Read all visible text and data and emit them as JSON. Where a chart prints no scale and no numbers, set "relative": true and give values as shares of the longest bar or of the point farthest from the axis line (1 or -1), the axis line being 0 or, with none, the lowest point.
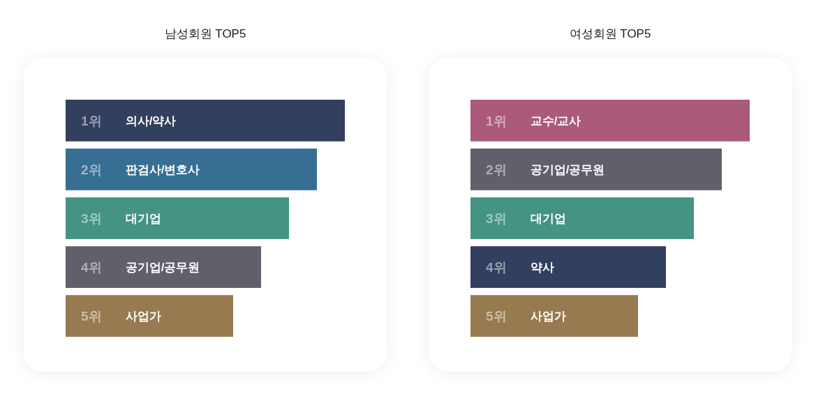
{
  "chart_data": [
    {
      "type": "bar",
      "orientation": "horizontal",
      "relative": true,
      "title": "남성회원 TOP5",
      "categories": [
        "1위 의사/약사",
        "2위 판검사/변호사",
        "3위 대기업",
        "4위 공기업/공무원",
        "5위 사업가"
      ],
      "values": [
        1,
        0.9,
        0.8,
        0.7,
        0.6
      ],
      "colors": [
        "#333f5f",
        "#376f94",
        "#459382",
        "#5f6069",
        "#977a50"
      ]
    },
    {
      "type": "bar",
      "orientation": "horizontal",
      "relative": true,
      "title": "여성회원 TOP5",
      "categories": [
        "1위 교수/교사",
        "2위 공기업/공무원",
        "3위 대기업",
        "4위 약사",
        "5위 사업가"
      ],
      "values": [
        1,
        0.9,
        0.8,
        0.7,
        0.6
      ],
      "colors": [
        "#ab5a7b",
        "#5f6069",
        "#459382",
        "#333f5f",
        "#977a50"
      ]
    }
  ]
}
